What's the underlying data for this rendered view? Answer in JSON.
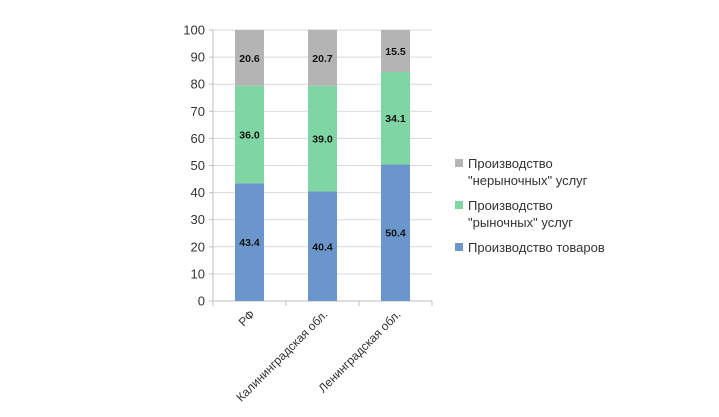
{
  "chart_data": {
    "type": "bar",
    "stacked": true,
    "title": "",
    "xlabel": "",
    "ylabel": "",
    "ylim": [
      0,
      100
    ],
    "yticks": [
      0,
      10,
      20,
      30,
      40,
      50,
      60,
      70,
      80,
      90,
      100
    ],
    "grid": true,
    "legend_position": "right",
    "categories": [
      "РФ",
      "Калининградская обл.",
      "Ленинградская обл."
    ],
    "series": [
      {
        "name": "Производство товаров",
        "color": "#6a96cc",
        "values": [
          43.4,
          40.4,
          50.4
        ]
      },
      {
        "name": "Производство \"рыночных\" услуг",
        "color": "#7fd6a4",
        "values": [
          36.0,
          39.0,
          34.1
        ]
      },
      {
        "name": "Производство \"нерыночных\" услуг",
        "color": "#b4b4b4",
        "values": [
          20.6,
          20.7,
          15.5
        ]
      }
    ]
  },
  "legend": {
    "items": [
      {
        "label_line1": "Производство",
        "label_line2": "\"нерыночных\" услуг",
        "color": "#b4b4b4"
      },
      {
        "label_line1": "Производство",
        "label_line2": "\"рыночных\" услуг",
        "color": "#7fd6a4"
      },
      {
        "label_line1": "Производство товаров",
        "label_line2": "",
        "color": "#6a96cc"
      }
    ]
  }
}
